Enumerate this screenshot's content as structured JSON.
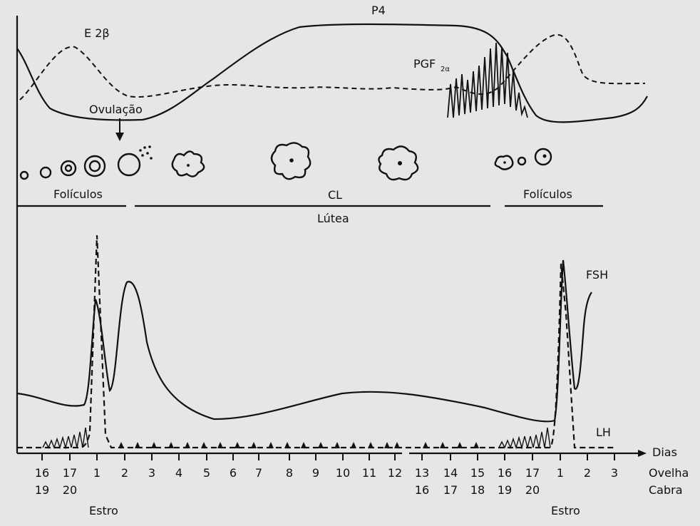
{
  "top_panel": {
    "curves": {
      "progesterone": "P4",
      "estradiol": "E 2β",
      "prostaglandin_base": "PGF",
      "prostaglandin_sub": "2α"
    },
    "ovulation_label": "Ovulação",
    "phase_labels": {
      "follicles_left": "Folículos",
      "corpus_luteum": "CL",
      "luteal": "Lútea",
      "follicles_right": "Folículos"
    }
  },
  "bottom_panel": {
    "curves": {
      "fsh": "FSH",
      "lh": "LH"
    },
    "axis_label": "Dias",
    "species": [
      "Ovelha",
      "Cabra"
    ],
    "days_ewe": [
      "16",
      "17",
      "1",
      "2",
      "3",
      "4",
      "5",
      "6",
      "7",
      "8",
      "9",
      "10",
      "11",
      "12",
      "13",
      "14",
      "15",
      "16",
      "17",
      "1",
      "2",
      "3"
    ],
    "days_goat_left": [
      "19",
      "20"
    ],
    "days_goat_right": [
      "16",
      "17",
      "18",
      "19",
      "20"
    ],
    "estrus_labels": [
      "Estro",
      "Estro"
    ]
  },
  "colors": {
    "ink": "#111111",
    "background": "#e6e6e6"
  }
}
